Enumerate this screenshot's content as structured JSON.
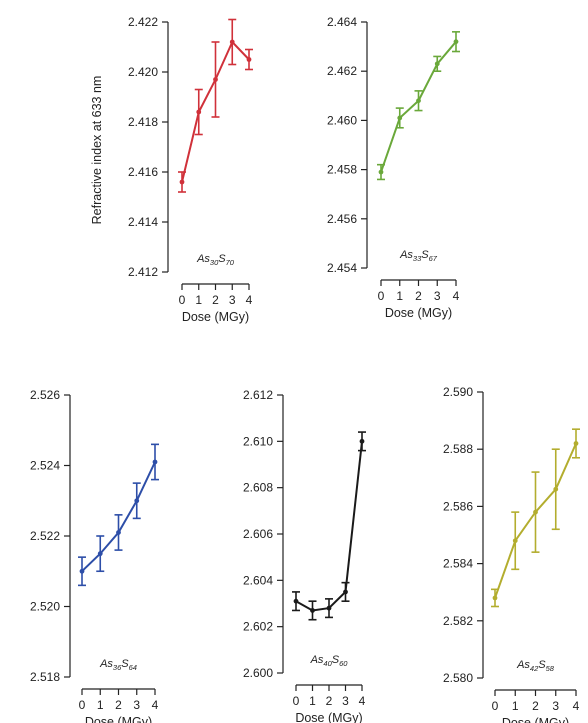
{
  "figure": {
    "ylabel": "Refractive index at 633 nm"
  },
  "chart_data": [
    {
      "type": "line",
      "label": {
        "main": "As",
        "sub1": "30",
        "mid": "S",
        "sub2": "70"
      },
      "color": "#d0313a",
      "xlabel": "Dose (MGy)",
      "ylabel": "Refractive index at 633 nm",
      "x": [
        0,
        1,
        2,
        3,
        4
      ],
      "y": [
        2.4156,
        2.4184,
        2.4197,
        2.4212,
        2.4205
      ],
      "err": [
        0.0004,
        0.0009,
        0.0015,
        0.0009,
        0.0004
      ],
      "xlim": [
        0,
        4
      ],
      "ylim": [
        2.412,
        2.422
      ],
      "xticks": [
        0,
        1,
        2,
        3,
        4
      ],
      "yticks": [
        2.412,
        2.414,
        2.416,
        2.418,
        2.42,
        2.422
      ],
      "ytick_labels": [
        "2.412",
        "2.414",
        "2.416",
        "2.418",
        "2.420",
        "2.422"
      ]
    },
    {
      "type": "line",
      "label": {
        "main": "As",
        "sub1": "33",
        "mid": "S",
        "sub2": "67"
      },
      "color": "#6aa83a",
      "xlabel": "Dose (MGy)",
      "x": [
        0,
        1,
        2,
        3,
        4
      ],
      "y": [
        2.4579,
        2.4601,
        2.4608,
        2.4623,
        2.4632
      ],
      "err": [
        0.0003,
        0.0004,
        0.0004,
        0.0003,
        0.0004
      ],
      "xlim": [
        0,
        4
      ],
      "ylim": [
        2.454,
        2.464
      ],
      "xticks": [
        0,
        1,
        2,
        3,
        4
      ],
      "yticks": [
        2.454,
        2.456,
        2.458,
        2.46,
        2.462,
        2.464
      ],
      "ytick_labels": [
        "2.454",
        "2.456",
        "2.458",
        "2.460",
        "2.462",
        "2.464"
      ]
    },
    {
      "type": "line",
      "label": {
        "main": "As",
        "sub1": "36",
        "mid": "S",
        "sub2": "64"
      },
      "color": "#2d4ea8",
      "xlabel": "Dose (MGy)",
      "x": [
        0,
        1,
        2,
        3,
        4
      ],
      "y": [
        2.521,
        2.5215,
        2.5221,
        2.523,
        2.5241
      ],
      "err": [
        0.0004,
        0.0005,
        0.0005,
        0.0005,
        0.0005
      ],
      "xlim": [
        0,
        4
      ],
      "ylim": [
        2.518,
        2.526
      ],
      "xticks": [
        0,
        1,
        2,
        3,
        4
      ],
      "yticks": [
        2.518,
        2.52,
        2.522,
        2.524,
        2.526
      ],
      "ytick_labels": [
        "2.518",
        "2.520",
        "2.522",
        "2.524",
        "2.526"
      ]
    },
    {
      "type": "line",
      "label": {
        "main": "As",
        "sub1": "40",
        "mid": "S",
        "sub2": "60"
      },
      "color": "#1a1a1a",
      "xlabel": "Dose (MGy)",
      "x": [
        0,
        1,
        2,
        3,
        4
      ],
      "y": [
        2.6031,
        2.6027,
        2.6028,
        2.6035,
        2.61
      ],
      "err": [
        0.0004,
        0.0004,
        0.0004,
        0.0004,
        0.0004
      ],
      "xlim": [
        0,
        4
      ],
      "ylim": [
        2.6,
        2.612
      ],
      "xticks": [
        0,
        1,
        2,
        3,
        4
      ],
      "yticks": [
        2.6,
        2.602,
        2.604,
        2.606,
        2.608,
        2.61,
        2.612
      ],
      "ytick_labels": [
        "2.600",
        "2.602",
        "2.604",
        "2.606",
        "2.608",
        "2.610",
        "2.612"
      ]
    },
    {
      "type": "line",
      "label": {
        "main": "As",
        "sub1": "42",
        "mid": "S",
        "sub2": "58"
      },
      "color": "#b3ad2e",
      "xlabel": "Dose (MGy)",
      "x": [
        0,
        1,
        2,
        3,
        4
      ],
      "y": [
        2.5828,
        2.5848,
        2.5858,
        2.5866,
        2.5882
      ],
      "err": [
        0.0003,
        0.001,
        0.0014,
        0.0014,
        0.0005
      ],
      "xlim": [
        0,
        4
      ],
      "ylim": [
        2.58,
        2.59
      ],
      "xticks": [
        0,
        1,
        2,
        3,
        4
      ],
      "yticks": [
        2.58,
        2.582,
        2.584,
        2.586,
        2.588,
        2.59
      ],
      "ytick_labels": [
        "2.580",
        "2.582",
        "2.584",
        "2.586",
        "2.588",
        "2.590"
      ]
    }
  ]
}
